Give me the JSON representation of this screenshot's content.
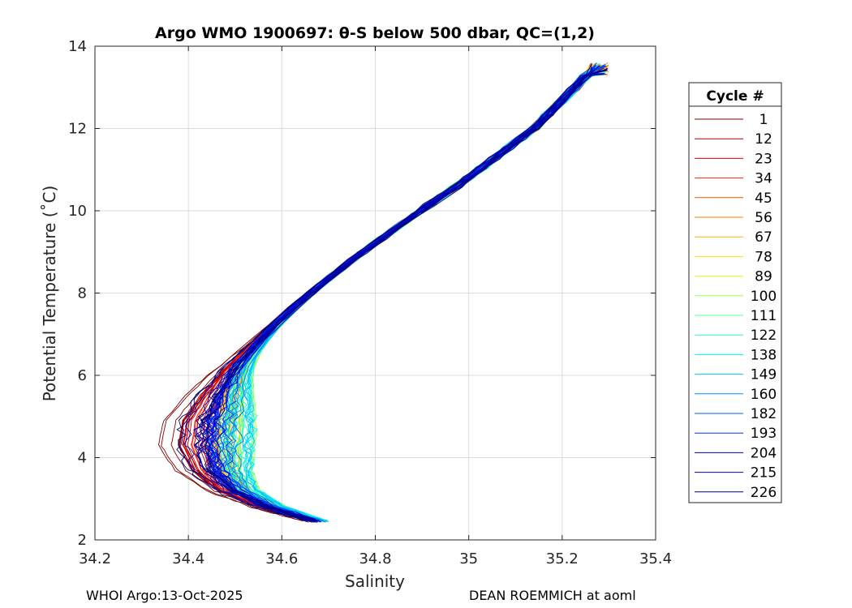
{
  "chart_data": {
    "type": "line",
    "title": "Argo WMO 1900697: θ-S below 500 dbar,  QC=(1,2)",
    "xlabel": "Salinity",
    "ylabel": "Potential Temperature (˚C)",
    "xlim": [
      34.2,
      35.4
    ],
    "ylim": [
      2,
      14
    ],
    "xticks": [
      "34.2",
      "34.4",
      "34.6",
      "34.8",
      "35",
      "35.2",
      "35.4"
    ],
    "yticks": [
      "2",
      "4",
      "6",
      "8",
      "10",
      "12",
      "14"
    ],
    "grid": true,
    "legend_title": "Cycle #",
    "legend_position": "right",
    "series": [
      {
        "name": "1",
        "color": "#800000"
      },
      {
        "name": "12",
        "color": "#b00000"
      },
      {
        "name": "23",
        "color": "#e00000"
      },
      {
        "name": "34",
        "color": "#ff2000"
      },
      {
        "name": "45",
        "color": "#ff5000"
      },
      {
        "name": "56",
        "color": "#ff8000"
      },
      {
        "name": "67",
        "color": "#ffb000"
      },
      {
        "name": "78",
        "color": "#ffe000"
      },
      {
        "name": "89",
        "color": "#d0ff20"
      },
      {
        "name": "100",
        "color": "#a0ff50"
      },
      {
        "name": "111",
        "color": "#60ff90"
      },
      {
        "name": "122",
        "color": "#30ffc0"
      },
      {
        "name": "138",
        "color": "#00f0ff"
      },
      {
        "name": "149",
        "color": "#00c0ff"
      },
      {
        "name": "160",
        "color": "#0090ff"
      },
      {
        "name": "182",
        "color": "#0060ff"
      },
      {
        "name": "193",
        "color": "#0030ff"
      },
      {
        "name": "204",
        "color": "#0000e0"
      },
      {
        "name": "215",
        "color": "#0000b0"
      },
      {
        "name": "226",
        "color": "#000080"
      }
    ],
    "profile_shape": {
      "salinity": [
        34.66,
        34.55,
        34.46,
        34.4,
        34.37,
        34.38,
        34.42,
        34.47,
        34.55,
        34.64,
        34.75,
        34.86,
        35.0,
        35.14,
        35.28
      ],
      "theta": [
        2.45,
        2.8,
        3.2,
        3.7,
        4.3,
        4.9,
        5.5,
        6.1,
        6.9,
        7.8,
        8.8,
        9.7,
        10.8,
        12.0,
        13.6
      ]
    }
  },
  "footer": {
    "left": "WHOI Argo:13-Oct-2025",
    "right": "DEAN ROEMMICH at aoml"
  }
}
